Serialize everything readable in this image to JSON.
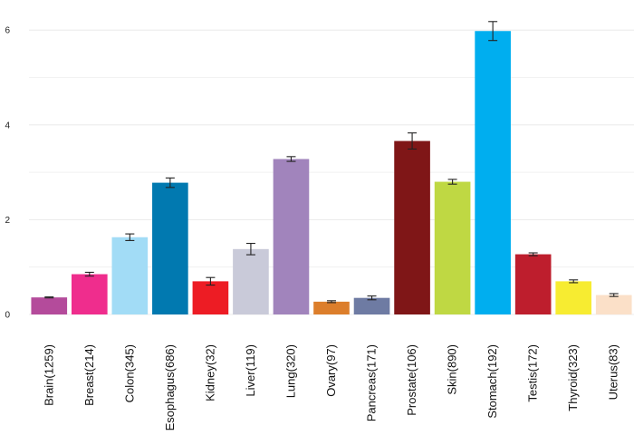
{
  "chart_data": {
    "type": "bar",
    "categories": [
      "Brain(1259)",
      "Breast(214)",
      "Colon(345)",
      "Esophagus(686)",
      "Kidney(32)",
      "Liver(119)",
      "Lung(320)",
      "Ovary(97)",
      "Pancreas(171)",
      "Prostate(106)",
      "Skin(890)",
      "Stomach(192)",
      "Testis(172)",
      "Thyroid(323)",
      "Uterus(83)"
    ],
    "values": [
      0.36,
      0.85,
      1.63,
      2.78,
      0.7,
      1.38,
      3.28,
      0.27,
      0.35,
      3.66,
      2.8,
      5.98,
      1.27,
      0.7,
      0.41
    ],
    "errors": [
      0.01,
      0.04,
      0.07,
      0.1,
      0.08,
      0.12,
      0.05,
      0.02,
      0.04,
      0.17,
      0.05,
      0.2,
      0.03,
      0.03,
      0.03
    ],
    "colors": [
      "#b44b9b",
      "#ef2d8d",
      "#a2dcf6",
      "#0179b0",
      "#ed1c24",
      "#c9cad9",
      "#a184bc",
      "#dc7e2b",
      "#6e7ba3",
      "#7f1617",
      "#bfd843",
      "#00aeef",
      "#be1e2d",
      "#f7ec31",
      "#fbe0c8"
    ],
    "yticks": [
      0,
      2,
      4,
      6
    ],
    "ylim": [
      0,
      6.3
    ],
    "grid": true
  }
}
